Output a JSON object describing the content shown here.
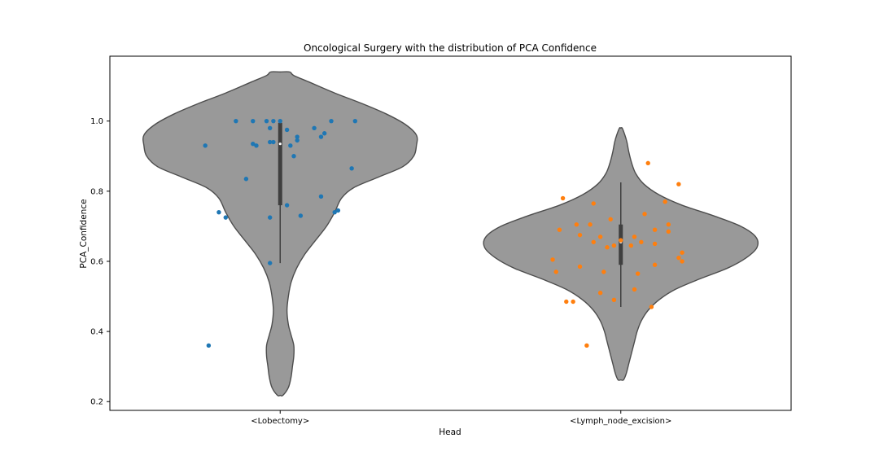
{
  "chart_data": {
    "type": "violin",
    "title": "Oncological Surgery with the distribution of PCA Confidence",
    "xlabel": "Head",
    "ylabel": "PCA_Confidence",
    "ylim": [
      0.175,
      1.185
    ],
    "yticks": [
      0.2,
      0.4,
      0.6,
      0.8,
      1.0
    ],
    "ytick_labels": [
      "0.2",
      "0.4",
      "0.6",
      "0.8",
      "1.0"
    ],
    "categories": [
      "<Lobectomy>",
      "<Lymph_node_excision>"
    ],
    "violin_color": "#999999",
    "violin_edge_color": "#4d4d4d",
    "grid": false,
    "series": [
      {
        "category": "<Lobectomy>",
        "color": "#1f77b4",
        "box": {
          "q1": 0.76,
          "median": 0.935,
          "q3": 0.995,
          "whisker_low": 0.595,
          "whisker_high": 1.0
        },
        "density_profile": [
          [
            0.218,
            0.02
          ],
          [
            0.24,
            0.06
          ],
          [
            0.27,
            0.08
          ],
          [
            0.3,
            0.09
          ],
          [
            0.33,
            0.1
          ],
          [
            0.36,
            0.1
          ],
          [
            0.39,
            0.08
          ],
          [
            0.42,
            0.06
          ],
          [
            0.46,
            0.05
          ],
          [
            0.5,
            0.06
          ],
          [
            0.54,
            0.08
          ],
          [
            0.58,
            0.12
          ],
          [
            0.62,
            0.18
          ],
          [
            0.66,
            0.26
          ],
          [
            0.7,
            0.34
          ],
          [
            0.74,
            0.4
          ],
          [
            0.78,
            0.45
          ],
          [
            0.81,
            0.54
          ],
          [
            0.84,
            0.72
          ],
          [
            0.87,
            0.9
          ],
          [
            0.9,
            0.98
          ],
          [
            0.93,
            1.0
          ],
          [
            0.96,
            1.0
          ],
          [
            0.99,
            0.92
          ],
          [
            1.02,
            0.78
          ],
          [
            1.05,
            0.6
          ],
          [
            1.08,
            0.4
          ],
          [
            1.11,
            0.22
          ],
          [
            1.13,
            0.1
          ],
          [
            1.14,
            0.07
          ]
        ],
        "points": [
          [
            -0.22,
            0.93
          ],
          [
            -0.13,
            1.0
          ],
          [
            -0.08,
            1.0
          ],
          [
            -0.04,
            1.0
          ],
          [
            -0.02,
            1.0
          ],
          [
            0.0,
            1.0
          ],
          [
            0.15,
            1.0
          ],
          [
            0.22,
            1.0
          ],
          [
            -0.03,
            0.98
          ],
          [
            0.02,
            0.975
          ],
          [
            0.1,
            0.98
          ],
          [
            0.13,
            0.965
          ],
          [
            0.12,
            0.955
          ],
          [
            0.05,
            0.955
          ],
          [
            0.05,
            0.945
          ],
          [
            -0.03,
            0.94
          ],
          [
            -0.02,
            0.94
          ],
          [
            0.03,
            0.93
          ],
          [
            -0.08,
            0.935
          ],
          [
            -0.07,
            0.93
          ],
          [
            0.04,
            0.9
          ],
          [
            0.21,
            0.865
          ],
          [
            -0.1,
            0.835
          ],
          [
            0.12,
            0.785
          ],
          [
            0.02,
            0.76
          ],
          [
            0.17,
            0.745
          ],
          [
            0.16,
            0.74
          ],
          [
            -0.18,
            0.74
          ],
          [
            -0.16,
            0.725
          ],
          [
            -0.03,
            0.725
          ],
          [
            0.06,
            0.73
          ],
          [
            -0.03,
            0.595
          ],
          [
            -0.21,
            0.36
          ]
        ]
      },
      {
        "category": "<Lymph_node_excision>",
        "color": "#ff7f0e",
        "box": {
          "q1": 0.59,
          "median": 0.655,
          "q3": 0.705,
          "whisker_low": 0.47,
          "whisker_high": 0.825
        },
        "density_profile": [
          [
            0.262,
            0.02
          ],
          [
            0.28,
            0.04
          ],
          [
            0.31,
            0.06
          ],
          [
            0.34,
            0.08
          ],
          [
            0.37,
            0.1
          ],
          [
            0.4,
            0.12
          ],
          [
            0.43,
            0.15
          ],
          [
            0.46,
            0.2
          ],
          [
            0.49,
            0.28
          ],
          [
            0.52,
            0.4
          ],
          [
            0.55,
            0.58
          ],
          [
            0.58,
            0.78
          ],
          [
            0.61,
            0.92
          ],
          [
            0.64,
            1.0
          ],
          [
            0.67,
            0.99
          ],
          [
            0.7,
            0.88
          ],
          [
            0.73,
            0.68
          ],
          [
            0.76,
            0.45
          ],
          [
            0.79,
            0.28
          ],
          [
            0.82,
            0.17
          ],
          [
            0.85,
            0.11
          ],
          [
            0.88,
            0.08
          ],
          [
            0.91,
            0.06
          ],
          [
            0.94,
            0.045
          ],
          [
            0.96,
            0.03
          ],
          [
            0.98,
            0.01
          ]
        ],
        "points": [
          [
            0.08,
            0.88
          ],
          [
            0.17,
            0.82
          ],
          [
            -0.17,
            0.78
          ],
          [
            0.13,
            0.77
          ],
          [
            -0.08,
            0.765
          ],
          [
            0.07,
            0.735
          ],
          [
            -0.03,
            0.72
          ],
          [
            0.14,
            0.705
          ],
          [
            -0.13,
            0.705
          ],
          [
            -0.09,
            0.705
          ],
          [
            -0.18,
            0.69
          ],
          [
            0.1,
            0.69
          ],
          [
            0.14,
            0.685
          ],
          [
            0.04,
            0.67
          ],
          [
            -0.06,
            0.67
          ],
          [
            -0.12,
            0.675
          ],
          [
            -0.08,
            0.655
          ],
          [
            0.0,
            0.66
          ],
          [
            0.06,
            0.655
          ],
          [
            0.1,
            0.65
          ],
          [
            -0.02,
            0.645
          ],
          [
            -0.04,
            0.64
          ],
          [
            0.03,
            0.645
          ],
          [
            0.18,
            0.625
          ],
          [
            0.17,
            0.61
          ],
          [
            -0.2,
            0.605
          ],
          [
            0.18,
            0.6
          ],
          [
            0.1,
            0.59
          ],
          [
            -0.12,
            0.585
          ],
          [
            -0.05,
            0.57
          ],
          [
            0.05,
            0.565
          ],
          [
            -0.19,
            0.57
          ],
          [
            -0.06,
            0.51
          ],
          [
            0.04,
            0.52
          ],
          [
            -0.16,
            0.485
          ],
          [
            -0.14,
            0.485
          ],
          [
            -0.02,
            0.49
          ],
          [
            0.09,
            0.47
          ],
          [
            -0.1,
            0.36
          ]
        ]
      }
    ]
  }
}
